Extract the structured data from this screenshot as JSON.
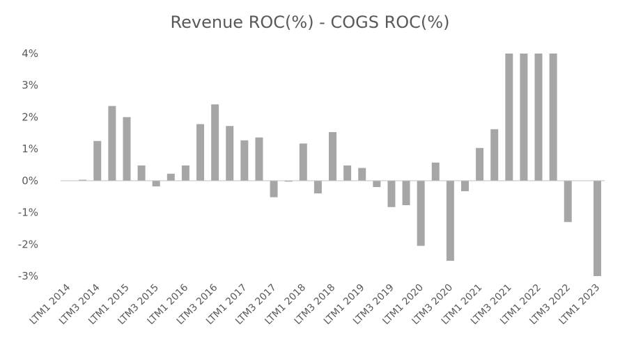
{
  "chart_data": {
    "type": "bar",
    "title": "Revenue ROC(%) - COGS ROC(%)",
    "ylim": [
      -3,
      4
    ],
    "yticks": [
      4,
      3,
      2,
      1,
      0,
      -1,
      -2,
      -3
    ],
    "ytick_labels": [
      "4%",
      "3%",
      "2%",
      "1%",
      "0%",
      "-1%",
      "-2%",
      "-3%"
    ],
    "grid": false,
    "bar_color": "#a6a6a6",
    "categories": [
      "LTM1 2014",
      "LTM2 2014",
      "LTM3 2014",
      "LTM4 2014",
      "LTM1 2015",
      "LTM2 2015",
      "LTM3 2015",
      "LTM4 2015",
      "LTM1 2016",
      "LTM2 2016",
      "LTM3 2016",
      "LTM4 2016",
      "LTM1 2017",
      "LTM2 2017",
      "LTM3 2017",
      "LTM4 2017",
      "LTM1 2018",
      "LTM2 2018",
      "LTM3 2018",
      "LTM4 2018",
      "LTM1 2019",
      "LTM2 2019",
      "LTM3 2019",
      "LTM4 2019",
      "LTM1 2020",
      "LTM2 2020",
      "LTM3 2020",
      "LTM4 2020",
      "LTM1 2021",
      "LTM2 2021",
      "LTM3 2021",
      "LTM4 2021",
      "LTM1 2022",
      "LTM2 2022",
      "LTM3 2022",
      "LTM4 2022",
      "LTM1 2023"
    ],
    "visible_category_labels": [
      "LTM1 2014",
      "LTM3 2014",
      "LTM1 2015",
      "LTM3 2015",
      "LTM1 2016",
      "LTM3 2016",
      "LTM1 2017",
      "LTM3 2017",
      "LTM1 2018",
      "LTM3 2018",
      "LTM1 2019",
      "LTM3 2019",
      "LTM1 2020",
      "LTM3 2020",
      "LTM1 2021",
      "LTM3 2021",
      "LTM1 2022",
      "LTM3 2022",
      "LTM1 2023"
    ],
    "values": [
      0.0,
      0.03,
      1.25,
      2.35,
      2.0,
      0.48,
      -0.18,
      0.22,
      0.48,
      1.78,
      2.4,
      1.72,
      1.27,
      1.36,
      -0.52,
      -0.03,
      1.17,
      -0.4,
      1.53,
      0.48,
      0.4,
      -0.2,
      -0.83,
      -0.77,
      -2.05,
      0.57,
      -2.52,
      -0.33,
      1.03,
      1.62,
      4.0,
      4.0,
      4.0,
      4.0,
      -1.3,
      0.0,
      -3.0
    ]
  }
}
